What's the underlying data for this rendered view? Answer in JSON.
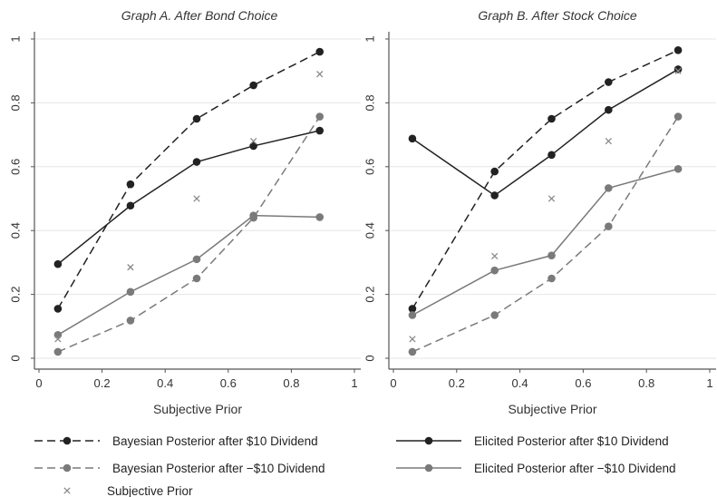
{
  "chart_data": [
    {
      "type": "line",
      "title": "Graph A. After Bond Choice",
      "xlabel": "Subjective Prior",
      "ylabel": "",
      "xlim": [
        0,
        1
      ],
      "ylim": [
        0,
        1
      ],
      "xticks": [
        "0",
        "0.2",
        "0.4",
        "0.6",
        "0.8",
        "1"
      ],
      "yticks": [
        "0",
        "0.2",
        "0.4",
        "0.6",
        "0.8",
        "1"
      ],
      "grid": true,
      "series": [
        {
          "key": "bayes_pos",
          "name": "Bayesian Posterior after $10 Dividend",
          "x": [
            0.06,
            0.29,
            0.5,
            0.68,
            0.89
          ],
          "y": [
            0.155,
            0.545,
            0.75,
            0.855,
            0.96
          ]
        },
        {
          "key": "elic_pos",
          "name": "Elicited Posterior after $10 Dividend",
          "x": [
            0.06,
            0.29,
            0.5,
            0.68,
            0.89
          ],
          "y": [
            0.295,
            0.478,
            0.615,
            0.665,
            0.713
          ]
        },
        {
          "key": "bayes_neg",
          "name": "Bayesian Posterior after −$10 Dividend",
          "x": [
            0.06,
            0.29,
            0.5,
            0.68,
            0.89
          ],
          "y": [
            0.02,
            0.118,
            0.25,
            0.44,
            0.757
          ]
        },
        {
          "key": "elic_neg",
          "name": "Elicited Posterior after −$10 Dividend",
          "x": [
            0.06,
            0.29,
            0.5,
            0.68,
            0.89
          ],
          "y": [
            0.073,
            0.208,
            0.31,
            0.447,
            0.442
          ]
        },
        {
          "key": "prior",
          "name": "Subjective Prior",
          "x": [
            0.06,
            0.29,
            0.5,
            0.68,
            0.89
          ],
          "y": [
            0.06,
            0.285,
            0.5,
            0.68,
            0.89
          ]
        }
      ]
    },
    {
      "type": "line",
      "title": "Graph B. After Stock Choice",
      "xlabel": "Subjective Prior",
      "ylabel": "",
      "xlim": [
        0,
        1
      ],
      "ylim": [
        0,
        1
      ],
      "xticks": [
        "0",
        "0.2",
        "0.4",
        "0.6",
        "0.8",
        "1"
      ],
      "yticks": [
        "0",
        "0.2",
        "0.4",
        "0.6",
        "0.8",
        "1"
      ],
      "grid": true,
      "series": [
        {
          "key": "bayes_pos",
          "name": "Bayesian Posterior after $10 Dividend",
          "x": [
            0.06,
            0.32,
            0.5,
            0.68,
            0.9
          ],
          "y": [
            0.155,
            0.585,
            0.75,
            0.865,
            0.965
          ]
        },
        {
          "key": "elic_pos",
          "name": "Elicited Posterior after $10 Dividend",
          "x": [
            0.06,
            0.32,
            0.5,
            0.68,
            0.9
          ],
          "y": [
            0.688,
            0.51,
            0.637,
            0.778,
            0.905
          ]
        },
        {
          "key": "bayes_neg",
          "name": "Bayesian Posterior after −$10 Dividend",
          "x": [
            0.06,
            0.32,
            0.5,
            0.68,
            0.9
          ],
          "y": [
            0.02,
            0.135,
            0.25,
            0.413,
            0.757
          ]
        },
        {
          "key": "elic_neg",
          "name": "Elicited Posterior after −$10 Dividend",
          "x": [
            0.06,
            0.32,
            0.5,
            0.68,
            0.9
          ],
          "y": [
            0.135,
            0.275,
            0.322,
            0.533,
            0.593
          ]
        },
        {
          "key": "prior",
          "name": "Subjective Prior",
          "x": [
            0.06,
            0.32,
            0.5,
            0.68,
            0.9
          ],
          "y": [
            0.06,
            0.32,
            0.5,
            0.68,
            0.9
          ]
        }
      ]
    }
  ],
  "legend": {
    "items": [
      {
        "key": "bayes_pos",
        "label": "Bayesian Posterior after $10 Dividend"
      },
      {
        "key": "elic_pos",
        "label": "Elicited Posterior after $10 Dividend"
      },
      {
        "key": "bayes_neg",
        "label": "Bayesian Posterior after −$10 Dividend"
      },
      {
        "key": "elic_neg",
        "label": "Elicited Posterior after −$10 Dividend"
      },
      {
        "key": "prior",
        "label": "Subjective Prior"
      }
    ]
  },
  "styles": {
    "bayes_pos": {
      "color": "#222222",
      "dash": true,
      "marker": "dot"
    },
    "elic_pos": {
      "color": "#222222",
      "dash": false,
      "marker": "dot"
    },
    "bayes_neg": {
      "color": "#7a7a7a",
      "dash": true,
      "marker": "dot"
    },
    "elic_neg": {
      "color": "#7a7a7a",
      "dash": false,
      "marker": "dot"
    },
    "prior": {
      "color": "#8a8a8a",
      "dash": false,
      "marker": "x"
    },
    "grid_color": "#e6e6e6",
    "axis_color": "#555555"
  }
}
